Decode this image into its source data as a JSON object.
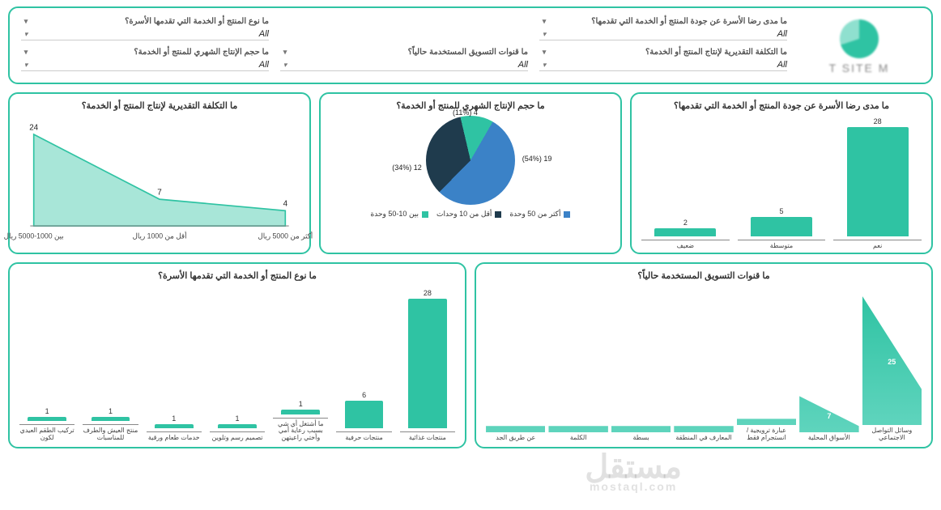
{
  "logo": {
    "text": "T SITE M"
  },
  "filters": [
    {
      "label": "ما مدى رضا الأسرة عن جودة المنتج أو الخدمة التي تقدمها؟",
      "value": "All"
    },
    {
      "label": "ما نوع المنتج أو الخدمة التي تقدمها الأسرة؟",
      "value": "All"
    },
    {
      "label": "ما التكلفة التقديرية لإنتاج المنتج أو الخدمة؟",
      "value": "All"
    },
    {
      "label": "ما قنوات التسويق المستخدمة حالياً؟",
      "value": "All"
    },
    {
      "label": "ما حجم الإنتاج الشهري للمنتج أو الخدمة؟",
      "value": "All"
    }
  ],
  "satisfaction_chart": {
    "title": "ما مدى رضا الأسرة عن جودة المنتج أو الخدمة التي تقدمها؟",
    "type": "bar",
    "bar_color": "#2fc3a3",
    "categories": [
      "نعم",
      "متوسطة",
      "ضعيف"
    ],
    "values": [
      28,
      5,
      2
    ],
    "ymax": 28,
    "label_fontsize": 9
  },
  "volume_chart": {
    "title": "ما حجم الإنتاج الشهري للمنتج أو الخدمة؟",
    "type": "pie",
    "slices": [
      {
        "label": "أكثر من 50 وحدة",
        "value": 19,
        "pct": 54,
        "color": "#3b82c7"
      },
      {
        "label": "أقل من 10 وحدات",
        "value": 12,
        "pct": 34,
        "color": "#1f3b4d"
      },
      {
        "label": "بين 10-50 وحدة",
        "value": 4,
        "pct": 11,
        "color": "#2fc3a3"
      }
    ],
    "slice_labels": [
      "19 (54%)",
      "12 (34%)",
      "4 (11%)"
    ]
  },
  "cost_chart": {
    "title": "ما التكلفة التقديرية لإنتاج المنتج أو الخدمة؟",
    "type": "area",
    "fill_color": "#a8e6d8",
    "line_color": "#2fc3a3",
    "categories": [
      "بين 1000-5000 ريال",
      "أقل من 1000 ريال",
      "أكثر من 5000 ريال"
    ],
    "values": [
      24,
      7,
      4
    ],
    "ymax": 26,
    "point_labels": [
      "24",
      "7",
      "4"
    ]
  },
  "channels_chart": {
    "title": "ما قنوات التسويق المستخدمة حالياً؟",
    "type": "funnel",
    "fill_color": "#2fc3a3",
    "categories": [
      "وسائل التواصل الاجتماعي",
      "الأسواق المحلية",
      "عبارة ترويجية / انستجرام فقط",
      "المعارف في المنطقة",
      "بسطة",
      "الكلمة",
      "عن طريق الجد"
    ],
    "values": [
      25,
      7,
      1,
      1,
      1,
      1,
      1
    ],
    "ymax": 25
  },
  "product_type_chart": {
    "title": "ما نوع المنتج أو الخدمة التي تقدمها الأسرة؟",
    "type": "bar",
    "bar_color": "#2fc3a3",
    "categories": [
      "منتجات غذائية",
      "منتجات حرفية",
      "ما أشتغل أي شي بسبب رعاية أمي وأختي راعيتهن",
      "تصميم رسم وتلوين",
      "خدمات طعام ورقية",
      "منتج العيش والطرف للمناسبات",
      "تركيب الطقم العيدي لكون"
    ],
    "values": [
      28,
      6,
      1,
      1,
      1,
      1,
      1
    ],
    "ymax": 28
  },
  "watermark": {
    "main": "مستقل",
    "sub": "mostaql.com"
  },
  "colors": {
    "border": "#2fc3a3",
    "text": "#333333"
  }
}
